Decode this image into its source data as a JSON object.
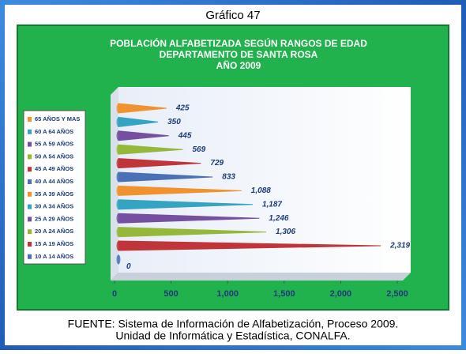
{
  "header": "Gráfico 47",
  "chart_data": {
    "type": "cone-bar",
    "title": [
      "POBLACIÓN ALFABETIZADA SEGÚN RANGOS DE EDAD",
      "DEPARTAMENTO DE SANTA ROSA",
      "AÑO 2009"
    ],
    "categories": [
      "65 AÑOS Y MAS",
      "60 A 64 AÑOS",
      "55 A 59 AÑOS",
      "50 A 54 AÑOS",
      "45 A 49 AÑOS",
      "40 A 44 AÑOS",
      "35 A 39 AÑOS",
      "30 A 34 AÑOS",
      "25 A 29 AÑOS",
      "20 A 24 AÑOS",
      "15 A 19 AÑOS",
      "10 A 14 AÑOS"
    ],
    "values": [
      425,
      350,
      445,
      569,
      729,
      833,
      1088,
      1187,
      1246,
      1306,
      2319,
      0
    ],
    "value_labels": [
      "425",
      "350",
      "445",
      "569",
      "729",
      "833",
      "1,088",
      "1,187",
      "1,246",
      "1,306",
      "2,319",
      "0"
    ],
    "colors": [
      "#f0922e",
      "#35a3c2",
      "#7650a0",
      "#96b83a",
      "#c0353a",
      "#4a70b6",
      "#f0922e",
      "#35a3c2",
      "#7650a0",
      "#96b83a",
      "#c0353a",
      "#4a70b6"
    ],
    "xlim": [
      0,
      2500
    ],
    "xticks": [
      0,
      500,
      {
        "value": 1000,
        "label": "1,000"
      },
      {
        "value": 1500,
        "label": "1,500"
      },
      {
        "value": 2000,
        "label": "2,000"
      },
      {
        "value": 2500,
        "label": "2,500"
      }
    ],
    "legend": "left"
  },
  "footer": [
    "FUENTE: Sistema de Información de Alfabetización, Proceso 2009.",
    "Unidad de Informática y Estadística, CONALFA."
  ]
}
